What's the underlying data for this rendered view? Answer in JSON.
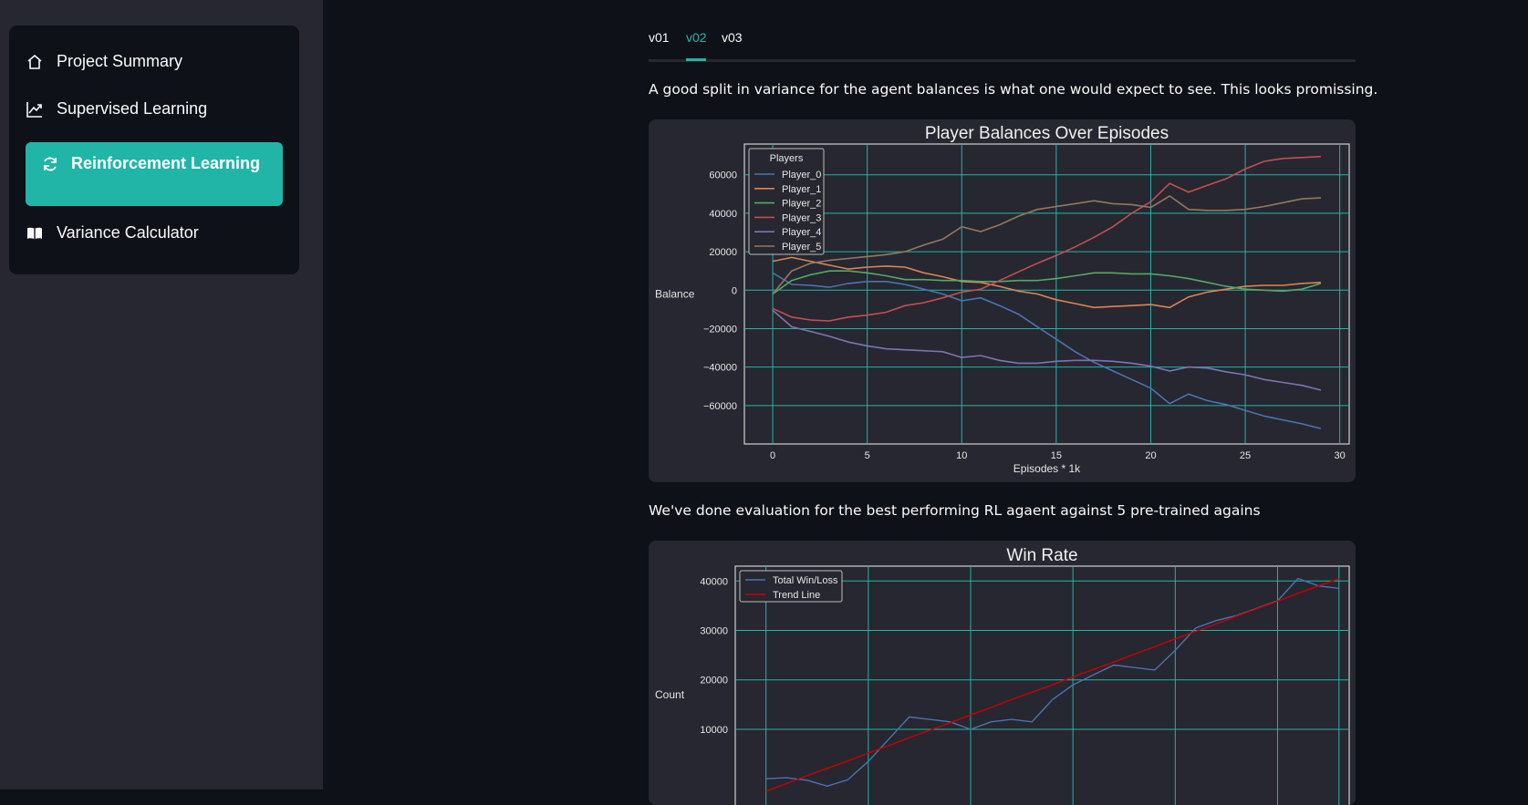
{
  "sidebar": {
    "items": [
      {
        "label": "Project Summary",
        "icon": "home-icon"
      },
      {
        "label": "Supervised Learning",
        "icon": "trending-up-icon"
      },
      {
        "label": "Reinforcement Learning",
        "icon": "refresh-icon",
        "active": true
      },
      {
        "label": "Variance Calculator",
        "icon": "book-icon"
      }
    ]
  },
  "tabs": [
    {
      "label": "v01"
    },
    {
      "label": "v02",
      "active": true
    },
    {
      "label": "v03"
    }
  ],
  "text": {
    "para1": "A good split in variance for the agent balances is what one would expect to see. This looks promissing.",
    "para2": "We've done evaluation for the best performing RL agaent against 5 pre-trained agains"
  },
  "colors": {
    "accent": "#21b5a8",
    "background": "#0e1117",
    "panel": "#262730",
    "grid": "#21b5a8"
  },
  "chart_data": [
    {
      "type": "line",
      "title": "Player Balances Over Episodes",
      "xlabel": "Episodes * 1k",
      "ylabel": "Balance",
      "xlim": [
        -1.5,
        30.5
      ],
      "ylim": [
        -80000,
        76000
      ],
      "xticks": [
        0,
        5,
        10,
        15,
        20,
        25,
        30
      ],
      "yticks": [
        -60000,
        -40000,
        -20000,
        0,
        20000,
        40000,
        60000
      ],
      "ytick_labels": [
        "−60000",
        "−40000",
        "−20000",
        "0",
        "20000",
        "40000",
        "60000"
      ],
      "grid": true,
      "legend": {
        "title": "Players",
        "placement": "top-left"
      },
      "x": [
        0,
        1,
        2,
        3,
        4,
        5,
        6,
        7,
        8,
        9,
        10,
        11,
        12,
        13,
        14,
        15,
        16,
        17,
        18,
        19,
        20,
        21,
        22,
        23,
        24,
        25,
        26,
        27,
        28,
        29
      ],
      "series": [
        {
          "name": "Player_0",
          "color": "#4c72b0",
          "values": [
            9000,
            3000,
            2500,
            1500,
            3500,
            4500,
            4500,
            3000,
            500,
            -2000,
            -5500,
            -4000,
            -8000,
            -12500,
            -19000,
            -25500,
            -32000,
            -37500,
            -42000,
            -46500,
            -51000,
            -59000,
            -54000,
            -57500,
            -59500,
            -62500,
            -65500,
            -67500,
            -69500,
            -72000
          ]
        },
        {
          "name": "Player_1",
          "color": "#dd8452",
          "values": [
            15000,
            17000,
            15000,
            13000,
            11000,
            12000,
            12500,
            12000,
            9000,
            7000,
            4500,
            4000,
            2000,
            -500,
            -2000,
            -5000,
            -7000,
            -9000,
            -8500,
            -8000,
            -7500,
            -9000,
            -3500,
            -1000,
            500,
            2000,
            2500,
            2500,
            3500,
            4000
          ]
        },
        {
          "name": "Player_2",
          "color": "#55a868",
          "values": [
            -2000,
            5000,
            8000,
            10000,
            10000,
            9000,
            7500,
            5500,
            5500,
            5000,
            5000,
            4500,
            4500,
            5000,
            5000,
            6000,
            7500,
            9000,
            9000,
            8500,
            8500,
            7500,
            6000,
            4000,
            2000,
            500,
            0,
            -500,
            500,
            3500
          ]
        },
        {
          "name": "Player_3",
          "color": "#c44e52",
          "values": [
            -9500,
            -14000,
            -15500,
            -16000,
            -14000,
            -13000,
            -11500,
            -8000,
            -6500,
            -4000,
            -1000,
            500,
            5000,
            9500,
            14000,
            18000,
            22500,
            27500,
            33000,
            40000,
            46000,
            55500,
            51000,
            54500,
            58000,
            63000,
            67000,
            68500,
            69000,
            69500
          ]
        },
        {
          "name": "Player_4",
          "color": "#8172b3",
          "values": [
            -10500,
            -19000,
            -21500,
            -24000,
            -27000,
            -29000,
            -30500,
            -31000,
            -31500,
            -32000,
            -35000,
            -34000,
            -36500,
            -38000,
            -38000,
            -37000,
            -36500,
            -36500,
            -37000,
            -38000,
            -39500,
            -42000,
            -40000,
            -40500,
            -42500,
            -44000,
            -46500,
            -48000,
            -49500,
            -52000
          ]
        },
        {
          "name": "Player_5",
          "color": "#937860",
          "values": [
            -2000,
            10000,
            14000,
            15500,
            16500,
            17500,
            18500,
            20000,
            23500,
            26500,
            33000,
            30500,
            34000,
            38500,
            42000,
            43500,
            45000,
            46500,
            45000,
            44500,
            43000,
            49000,
            42000,
            41500,
            41500,
            42000,
            43500,
            45500,
            47500,
            48000
          ]
        }
      ]
    },
    {
      "type": "line",
      "title": "Win Rate",
      "xlabel": "",
      "ylabel": "Count",
      "xlim": [
        -1.5,
        28.5
      ],
      "ylim": [
        -9000,
        43000
      ],
      "yticks": [
        10000,
        20000,
        30000,
        40000
      ],
      "grid": true,
      "legend": {
        "placement": "top-left"
      },
      "x": [
        0,
        1,
        2,
        3,
        4,
        5,
        6,
        7,
        8,
        9,
        10,
        11,
        12,
        13,
        14,
        15,
        16,
        17,
        18,
        19,
        20,
        21,
        22,
        23,
        24,
        25,
        26,
        27,
        28
      ],
      "series": [
        {
          "name": "Total Win/Loss",
          "color": "#4c72b0",
          "values": [
            0,
            200,
            -300,
            -1500,
            -200,
            3500,
            8000,
            12500,
            12000,
            11500,
            10000,
            11500,
            12000,
            11500,
            16000,
            19000,
            21000,
            23000,
            22500,
            22000,
            26000,
            30500,
            32000,
            33000,
            34500,
            36000,
            40500,
            39000,
            38500
          ]
        },
        {
          "name": "Trend Line",
          "color": "#cc0000",
          "values": [
            -2500,
            -1000,
            600,
            2100,
            3600,
            5200,
            6700,
            8300,
            9800,
            11300,
            12900,
            14400,
            16000,
            17500,
            19000,
            20600,
            22100,
            23600,
            25200,
            26700,
            28300,
            29800,
            31300,
            32900,
            34400,
            35900,
            37500,
            39000,
            40500
          ]
        }
      ]
    }
  ]
}
